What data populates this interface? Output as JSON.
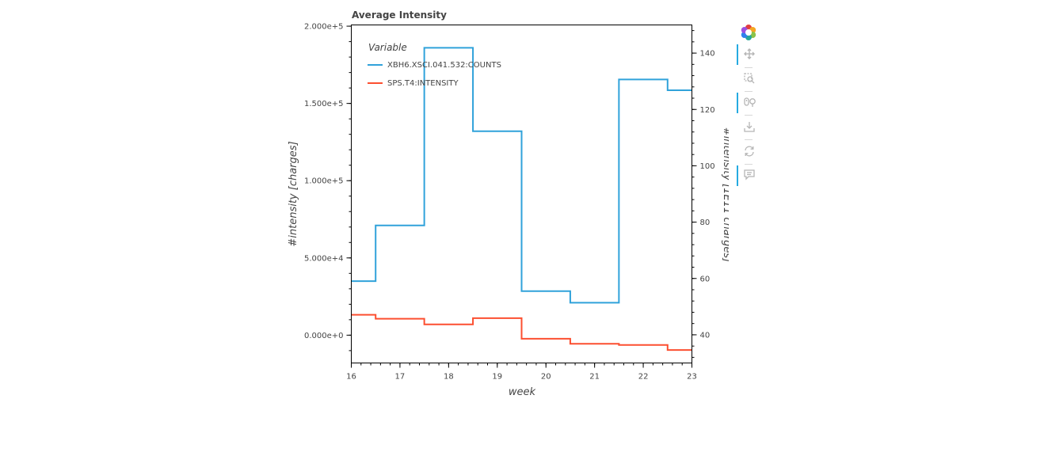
{
  "chart_data": {
    "type": "line",
    "step": "mid",
    "title": "Average Intensity",
    "xlabel": "week",
    "ylabel": "#intensity [charges]",
    "ylabel_right": "#intensity [1E11 charges]",
    "xlim": [
      16,
      23
    ],
    "ylim": [
      -18000,
      200800
    ],
    "ylim_right": [
      30,
      150
    ],
    "x_ticks": [
      "16",
      "17",
      "18",
      "19",
      "20",
      "21",
      "22",
      "23"
    ],
    "y_ticks": [
      "0.000e+0",
      "5.000e+4",
      "1.000e+5",
      "1.500e+5",
      "2.000e+5"
    ],
    "y_ticks_right": [
      "40",
      "60",
      "80",
      "100",
      "120",
      "140"
    ],
    "legend": {
      "title": "Variable",
      "location": "top-left"
    },
    "grid": false,
    "series": [
      {
        "name": "XBH6.XSCI.041.532:COUNTS",
        "axis": "left",
        "color": "#30a2da",
        "x": [
          16,
          17,
          18,
          19,
          20,
          21,
          22,
          23
        ],
        "y": [
          35000,
          71000,
          186000,
          132000,
          28500,
          21000,
          165500,
          158500
        ]
      },
      {
        "name": "SPS.T4:INTENSITY",
        "axis": "right",
        "color": "#fc4f30",
        "x": [
          16,
          17,
          18,
          19,
          20,
          21,
          22,
          23
        ],
        "y": [
          47.1,
          45.7,
          43.7,
          45.9,
          38.6,
          36.8,
          36.4,
          34.6
        ]
      }
    ]
  },
  "toolbar": {
    "logo": "bokeh-logo-icon",
    "tools": [
      {
        "name": "pan-tool",
        "icon": "move-icon",
        "active": true
      },
      {
        "name": "box-zoom-tool",
        "icon": "box-zoom-icon",
        "active": false
      },
      {
        "name": "wheel-zoom-tool",
        "icon": "wheel-zoom-icon",
        "active": true
      },
      {
        "name": "save-tool",
        "icon": "save-icon",
        "active": false
      },
      {
        "name": "reset-tool",
        "icon": "reset-icon",
        "active": false
      },
      {
        "name": "hover-tool",
        "icon": "hover-icon",
        "active": true
      }
    ]
  }
}
